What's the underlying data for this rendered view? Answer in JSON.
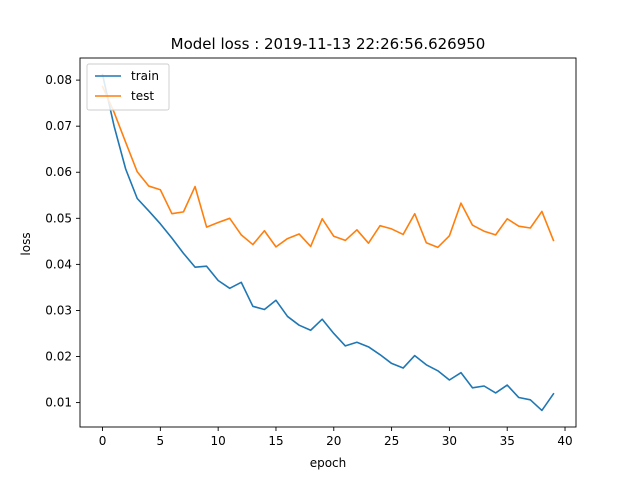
{
  "chart_data": {
    "type": "line",
    "title": "Model loss : 2019-11-13 22:26:56.626950",
    "xlabel": "epoch",
    "ylabel": "loss",
    "xlim": [
      -1.95,
      40.95
    ],
    "ylim": [
      0.0047,
      0.0848
    ],
    "xticks": [
      0,
      5,
      10,
      15,
      20,
      25,
      30,
      35,
      40
    ],
    "yticks": [
      0.01,
      0.02,
      0.03,
      0.04,
      0.05,
      0.06,
      0.07,
      0.08
    ],
    "legend_position": "upper-left",
    "x": [
      0,
      1,
      2,
      3,
      4,
      5,
      6,
      7,
      8,
      9,
      10,
      11,
      12,
      13,
      14,
      15,
      16,
      17,
      18,
      19,
      20,
      21,
      22,
      23,
      24,
      25,
      26,
      27,
      28,
      29,
      30,
      31,
      32,
      33,
      34,
      35,
      36,
      37,
      38,
      39
    ],
    "series": [
      {
        "name": "train",
        "color": "#1f77b4",
        "values": [
          0.0812,
          0.07,
          0.0607,
          0.0543,
          0.0516,
          0.0488,
          0.0457,
          0.0424,
          0.0394,
          0.0396,
          0.0365,
          0.0348,
          0.0361,
          0.0309,
          0.0302,
          0.0322,
          0.0287,
          0.0268,
          0.0257,
          0.0281,
          0.025,
          0.0223,
          0.0231,
          0.0221,
          0.0204,
          0.0185,
          0.0175,
          0.0202,
          0.0182,
          0.0169,
          0.0149,
          0.0165,
          0.0132,
          0.0136,
          0.0121,
          0.0138,
          0.0111,
          0.0106,
          0.0083,
          0.0119
        ]
      },
      {
        "name": "test",
        "color": "#ff7f0e",
        "values": [
          0.0786,
          0.073,
          0.0665,
          0.0601,
          0.057,
          0.0562,
          0.051,
          0.0514,
          0.0569,
          0.0481,
          0.0491,
          0.05,
          0.0464,
          0.0443,
          0.0473,
          0.0438,
          0.0456,
          0.0466,
          0.0439,
          0.0499,
          0.0461,
          0.0452,
          0.0475,
          0.0446,
          0.0484,
          0.0477,
          0.0465,
          0.051,
          0.0447,
          0.0437,
          0.0462,
          0.0533,
          0.0485,
          0.0472,
          0.0464,
          0.0499,
          0.0483,
          0.0479,
          0.0515,
          0.0452
        ]
      }
    ]
  }
}
